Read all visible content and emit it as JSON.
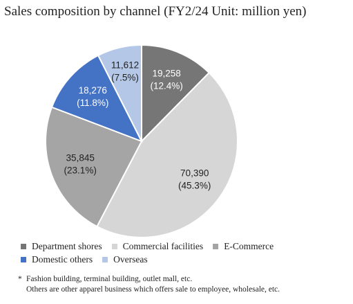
{
  "chart_data": {
    "type": "pie",
    "title": "Sales composition by channel (FY2/24 Unit: million yen)",
    "slices": [
      {
        "name": "Department shores",
        "value": 19258,
        "value_label": "19,258",
        "percent_label": "(12.4%)",
        "color": "#767676",
        "text_color": "#ffffff"
      },
      {
        "name": "Commercial facilities",
        "value": 70390,
        "value_label": "70,390",
        "percent_label": "(45.3%)",
        "color": "#d6d6d6",
        "text_color": "#222222"
      },
      {
        "name": "E-Commerce",
        "value": 35845,
        "value_label": "35,845",
        "percent_label": "(23.1%)",
        "color": "#a5a5a5",
        "text_color": "#222222"
      },
      {
        "name": "Domestic others",
        "value": 18276,
        "value_label": "18,276",
        "percent_label": "(11.8%)",
        "color": "#4472c4",
        "text_color": "#ffffff"
      },
      {
        "name": "Overseas",
        "value": 11612,
        "value_label": "11,612",
        "percent_label": "(7.5%)",
        "color": "#b4c7e7",
        "text_color": "#222222"
      }
    ],
    "legend_position": "bottom"
  },
  "legend": {
    "rows": [
      [
        "Department shores",
        "Commercial facilities",
        "E-Commerce"
      ],
      [
        "Domestic others",
        "Overseas"
      ]
    ]
  },
  "note": {
    "mark": "*",
    "line1": "Fashion building, terminal building, outlet mall, etc.",
    "line2": "Others are other apparel business which offers sale to employee, wholesale, etc."
  }
}
